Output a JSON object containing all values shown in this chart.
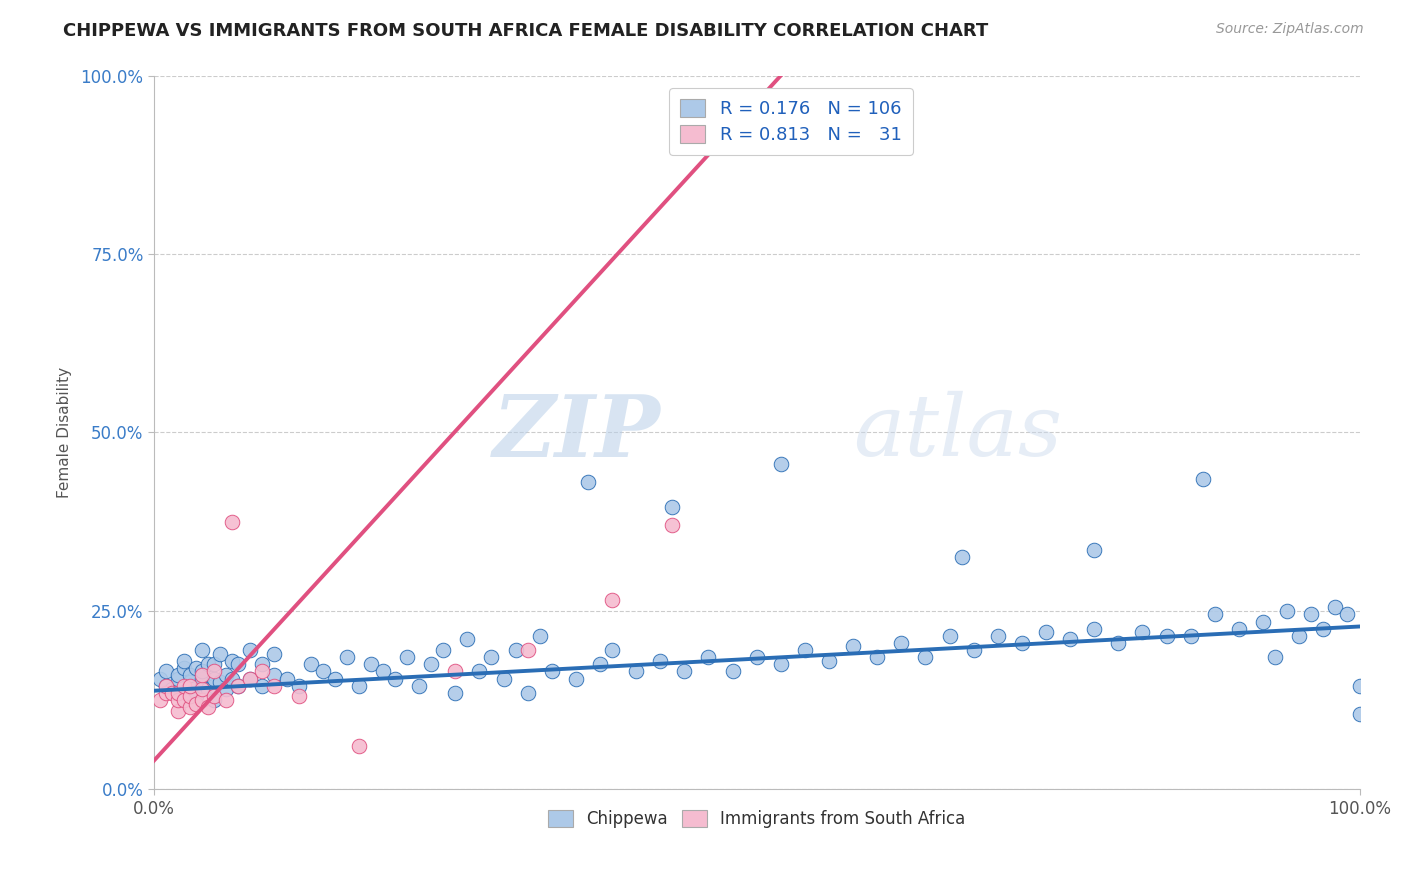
{
  "title": "CHIPPEWA VS IMMIGRANTS FROM SOUTH AFRICA FEMALE DISABILITY CORRELATION CHART",
  "source_text": "Source: ZipAtlas.com",
  "ylabel": "Female Disability",
  "xlim": [
    0.0,
    1.0
  ],
  "ylim": [
    0.0,
    1.0
  ],
  "xtick_labels": [
    "0.0%",
    "100.0%"
  ],
  "ytick_labels": [
    "0.0%",
    "25.0%",
    "50.0%",
    "75.0%",
    "100.0%"
  ],
  "ytick_positions": [
    0.0,
    0.25,
    0.5,
    0.75,
    1.0
  ],
  "watermark_zip": "ZIP",
  "watermark_atlas": "atlas",
  "legend_R_chip": "0.176",
  "legend_N_chip": "106",
  "legend_R_imm": "0.813",
  "legend_N_imm": "31",
  "chip_color": "#adc9e8",
  "imm_color": "#f5bcd0",
  "chip_line_color": "#2a6db5",
  "imm_line_color": "#e05080",
  "background_color": "#ffffff",
  "grid_color": "#cccccc",
  "title_color": "#222222",
  "axis_label_color": "#555555",
  "chip_scatter_x": [
    0.005,
    0.01,
    0.01,
    0.015,
    0.02,
    0.02,
    0.02,
    0.025,
    0.025,
    0.03,
    0.03,
    0.03,
    0.035,
    0.035,
    0.04,
    0.04,
    0.04,
    0.04,
    0.045,
    0.045,
    0.05,
    0.05,
    0.05,
    0.05,
    0.055,
    0.055,
    0.06,
    0.06,
    0.065,
    0.065,
    0.07,
    0.07,
    0.08,
    0.08,
    0.09,
    0.09,
    0.1,
    0.1,
    0.11,
    0.12,
    0.13,
    0.14,
    0.15,
    0.16,
    0.17,
    0.18,
    0.19,
    0.2,
    0.21,
    0.22,
    0.23,
    0.24,
    0.25,
    0.26,
    0.27,
    0.28,
    0.29,
    0.3,
    0.31,
    0.32,
    0.33,
    0.35,
    0.37,
    0.38,
    0.4,
    0.42,
    0.44,
    0.46,
    0.48,
    0.5,
    0.52,
    0.54,
    0.56,
    0.58,
    0.6,
    0.62,
    0.64,
    0.66,
    0.68,
    0.7,
    0.72,
    0.74,
    0.76,
    0.78,
    0.8,
    0.82,
    0.84,
    0.86,
    0.88,
    0.9,
    0.92,
    0.93,
    0.94,
    0.95,
    0.96,
    0.97,
    0.98,
    0.99,
    1.0,
    1.0,
    0.36,
    0.43,
    0.52,
    0.67,
    0.78,
    0.87
  ],
  "chip_scatter_y": [
    0.155,
    0.145,
    0.165,
    0.14,
    0.145,
    0.155,
    0.16,
    0.17,
    0.18,
    0.135,
    0.15,
    0.16,
    0.13,
    0.17,
    0.145,
    0.155,
    0.165,
    0.195,
    0.14,
    0.175,
    0.125,
    0.145,
    0.155,
    0.175,
    0.15,
    0.19,
    0.14,
    0.16,
    0.155,
    0.18,
    0.145,
    0.175,
    0.155,
    0.195,
    0.145,
    0.175,
    0.16,
    0.19,
    0.155,
    0.145,
    0.175,
    0.165,
    0.155,
    0.185,
    0.145,
    0.175,
    0.165,
    0.155,
    0.185,
    0.145,
    0.175,
    0.195,
    0.135,
    0.21,
    0.165,
    0.185,
    0.155,
    0.195,
    0.135,
    0.215,
    0.165,
    0.155,
    0.175,
    0.195,
    0.165,
    0.18,
    0.165,
    0.185,
    0.165,
    0.185,
    0.175,
    0.195,
    0.18,
    0.2,
    0.185,
    0.205,
    0.185,
    0.215,
    0.195,
    0.215,
    0.205,
    0.22,
    0.21,
    0.225,
    0.205,
    0.22,
    0.215,
    0.215,
    0.245,
    0.225,
    0.235,
    0.185,
    0.25,
    0.215,
    0.245,
    0.225,
    0.255,
    0.245,
    0.105,
    0.145,
    0.43,
    0.395,
    0.455,
    0.325,
    0.335,
    0.435
  ],
  "imm_scatter_x": [
    0.005,
    0.01,
    0.01,
    0.015,
    0.02,
    0.02,
    0.02,
    0.025,
    0.025,
    0.03,
    0.03,
    0.03,
    0.035,
    0.04,
    0.04,
    0.04,
    0.045,
    0.05,
    0.05,
    0.06,
    0.065,
    0.07,
    0.08,
    0.09,
    0.1,
    0.12,
    0.17,
    0.25,
    0.31,
    0.38,
    0.43
  ],
  "imm_scatter_y": [
    0.125,
    0.135,
    0.145,
    0.135,
    0.11,
    0.125,
    0.135,
    0.125,
    0.145,
    0.115,
    0.13,
    0.145,
    0.12,
    0.125,
    0.14,
    0.16,
    0.115,
    0.13,
    0.165,
    0.125,
    0.375,
    0.145,
    0.155,
    0.165,
    0.145,
    0.13,
    0.06,
    0.165,
    0.195,
    0.265,
    0.37
  ],
  "chip_line_x": [
    0.0,
    1.0
  ],
  "chip_line_y": [
    0.138,
    0.228
  ],
  "imm_line_x": [
    0.0,
    0.52
  ],
  "imm_line_y": [
    0.04,
    1.0
  ]
}
